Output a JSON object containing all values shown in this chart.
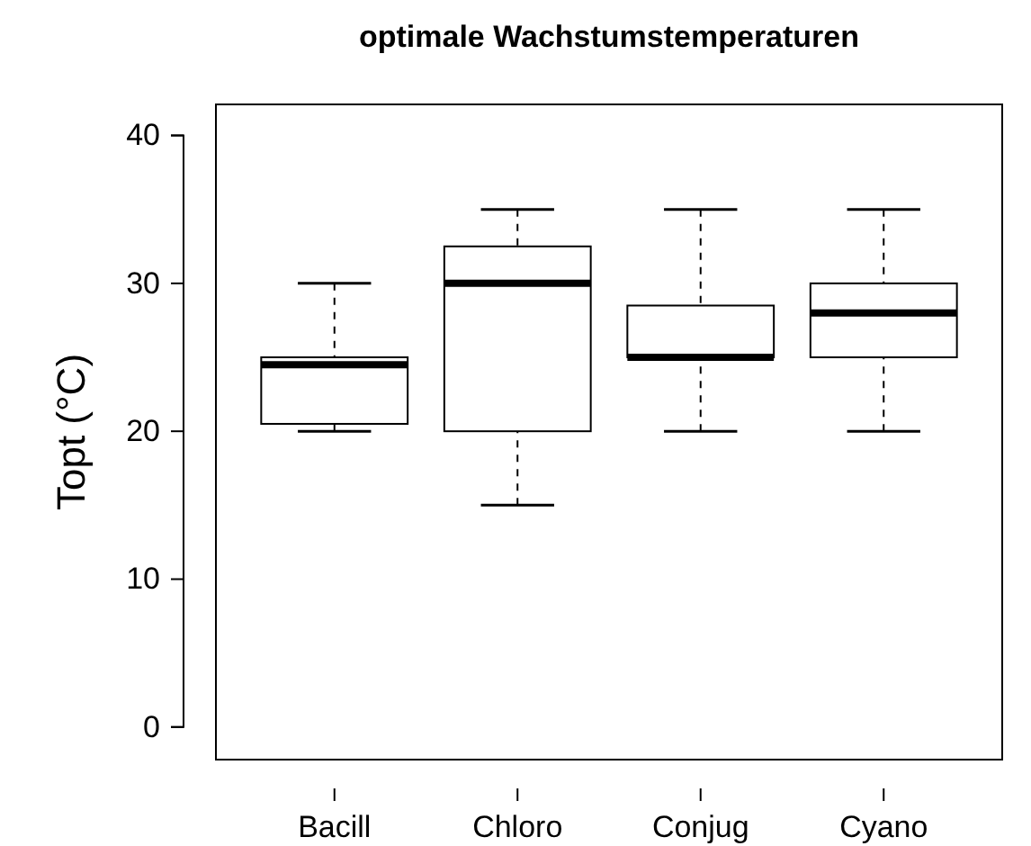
{
  "chart_data": {
    "type": "box",
    "title": "optimale Wachstumstemperaturen",
    "ylabel": "Topt (°C)",
    "categories": [
      "Bacill",
      "Chloro",
      "Conjug",
      "Cyano"
    ],
    "boxes": [
      {
        "low": 20,
        "q1": 20.5,
        "median": 24.5,
        "q3": 25,
        "high": 30
      },
      {
        "low": 15,
        "q1": 20,
        "median": 30,
        "q3": 32.5,
        "high": 35
      },
      {
        "low": 20,
        "q1": 25,
        "median": 25,
        "q3": 28.5,
        "high": 35
      },
      {
        "low": 20,
        "q1": 25,
        "median": 28,
        "q3": 30,
        "high": 35
      }
    ],
    "ylim": [
      -2.2,
      42.1
    ],
    "yticks": [
      0,
      10,
      20,
      30,
      40
    ],
    "grid": false,
    "color": "#000000"
  }
}
